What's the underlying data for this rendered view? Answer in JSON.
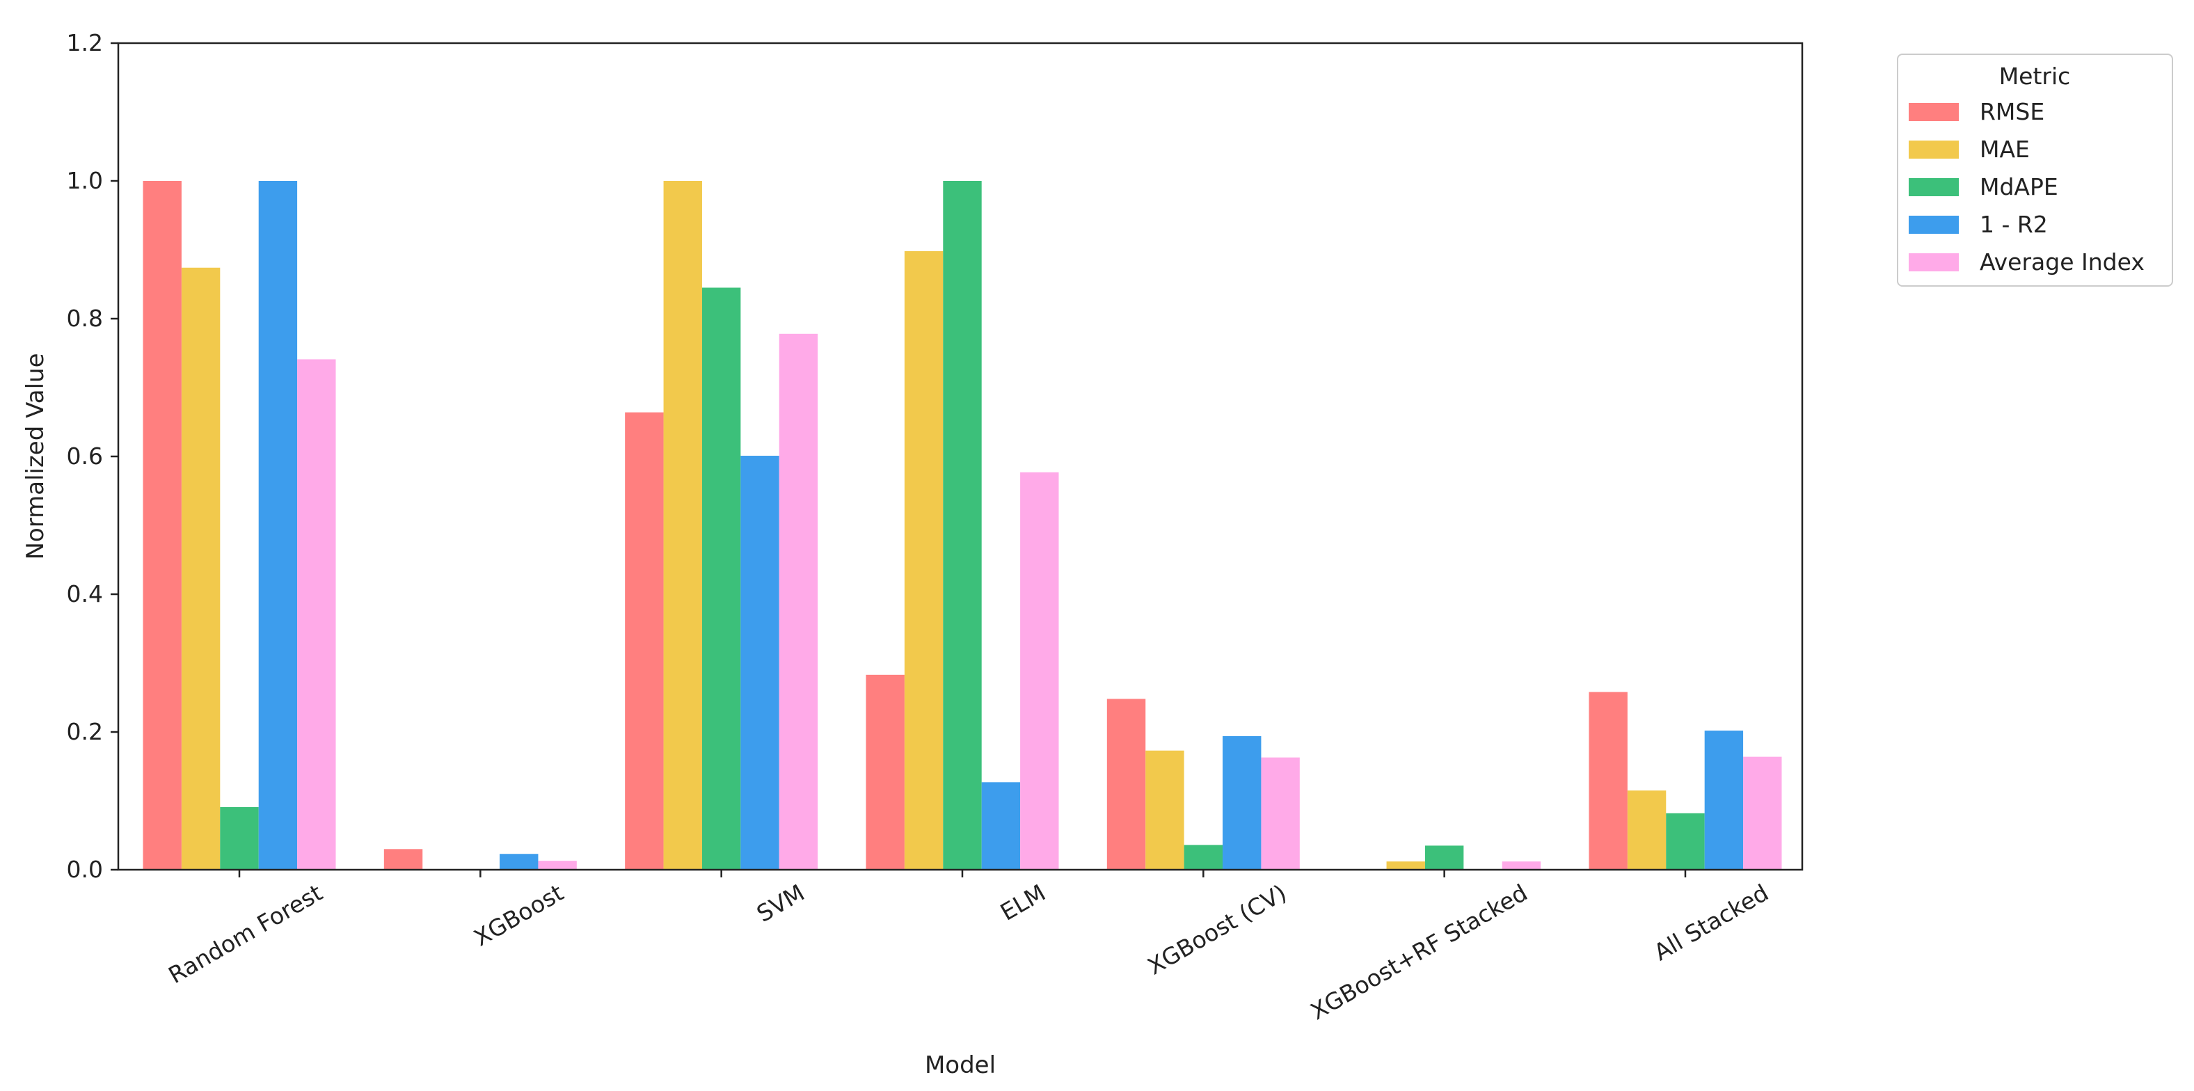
{
  "chart_data": {
    "type": "bar",
    "title": "",
    "xlabel": "Model",
    "ylabel": "Normalized Value",
    "ylim": [
      0,
      1.2
    ],
    "yticks": [
      "0.0",
      "0.2",
      "0.4",
      "0.6",
      "0.8",
      "1.0",
      "1.2"
    ],
    "grid": false,
    "legend_title": "Metric",
    "legend_position": "outside-top-right",
    "categories": [
      "Random Forest",
      "XGBoost",
      "SVM",
      "ELM",
      "XGBoost (CV)",
      "XGBoost+RF Stacked",
      "All Stacked"
    ],
    "series": [
      {
        "name": "RMSE",
        "color": "#ff7f7f",
        "values": [
          1.0,
          0.03,
          0.664,
          0.283,
          0.248,
          0.0,
          0.258
        ]
      },
      {
        "name": "MAE",
        "color": "#f2c94c",
        "values": [
          0.874,
          0.0,
          1.0,
          0.898,
          0.173,
          0.012,
          0.115
        ]
      },
      {
        "name": "MdAPE",
        "color": "#3cc07a",
        "values": [
          0.091,
          0.0,
          0.845,
          1.0,
          0.036,
          0.035,
          0.082
        ]
      },
      {
        "name": "1 - R2",
        "color": "#3d9ded",
        "values": [
          1.0,
          0.023,
          0.601,
          0.127,
          0.194,
          0.0,
          0.202
        ]
      },
      {
        "name": "Average Index",
        "color": "#ffaae8",
        "values": [
          0.741,
          0.013,
          0.778,
          0.577,
          0.163,
          0.012,
          0.164
        ]
      }
    ]
  }
}
